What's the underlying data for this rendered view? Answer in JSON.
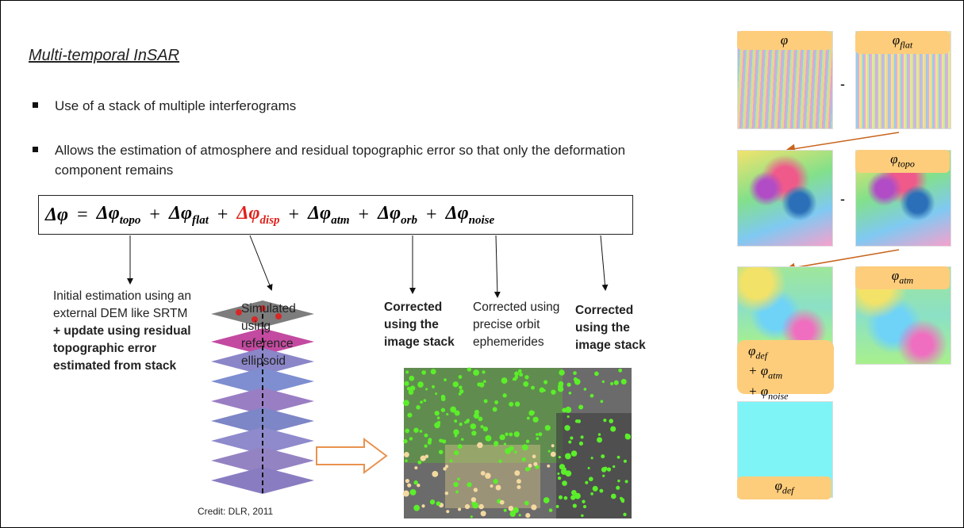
{
  "slide": {
    "title": "Multi-temporal InSAR",
    "bullets": [
      "Use of a stack of multiple interferograms",
      "Allows the estimation of atmosphere and residual topographic error so that only the deformation component remains"
    ],
    "equation": {
      "lhs": {
        "symbol": "Δφ"
      },
      "operators": [
        "=",
        "+",
        "+",
        "+",
        "+",
        "+"
      ],
      "terms": [
        {
          "symbol": "Δφ",
          "sub": "topo"
        },
        {
          "symbol": "Δφ",
          "sub": "flat"
        },
        {
          "symbol": "Δφ",
          "sub": "disp"
        },
        {
          "symbol": "Δφ",
          "sub": "atm"
        },
        {
          "symbol": "Δφ",
          "sub": "orb"
        },
        {
          "symbol": "Δφ",
          "sub": "noise"
        }
      ]
    },
    "annotations": [
      {
        "normal": "Initial estimation using an external DEM like SRTM",
        "bold": "+ update using residual topographic error estimated from stack"
      },
      {
        "normal": "Simulated using reference ellipsoid"
      },
      {
        "bold": "Corrected using the image stack"
      },
      {
        "normal": "Corrected using precise orbit ephemerides"
      },
      {
        "bold": "Corrected using the image stack"
      }
    ],
    "credit": "Credit: DLR, 2011",
    "panel": {
      "minus": "-",
      "labels": [
        {
          "symbol": "φ"
        },
        {
          "symbol": "φ",
          "sub": "flat"
        },
        {
          "symbol": "φ",
          "sub": "topo"
        },
        {
          "symbol": "φ",
          "sub": "atm"
        },
        {
          "lines": [
            {
              "symbol": "φ",
              "sub": "def"
            },
            {
              "prefix": "+ ",
              "symbol": "φ",
              "sub": "atm"
            },
            {
              "prefix": "+ ",
              "symbol": "φ",
              "sub": "noise"
            }
          ]
        },
        {
          "symbol": "φ",
          "sub": "def"
        }
      ]
    }
  }
}
